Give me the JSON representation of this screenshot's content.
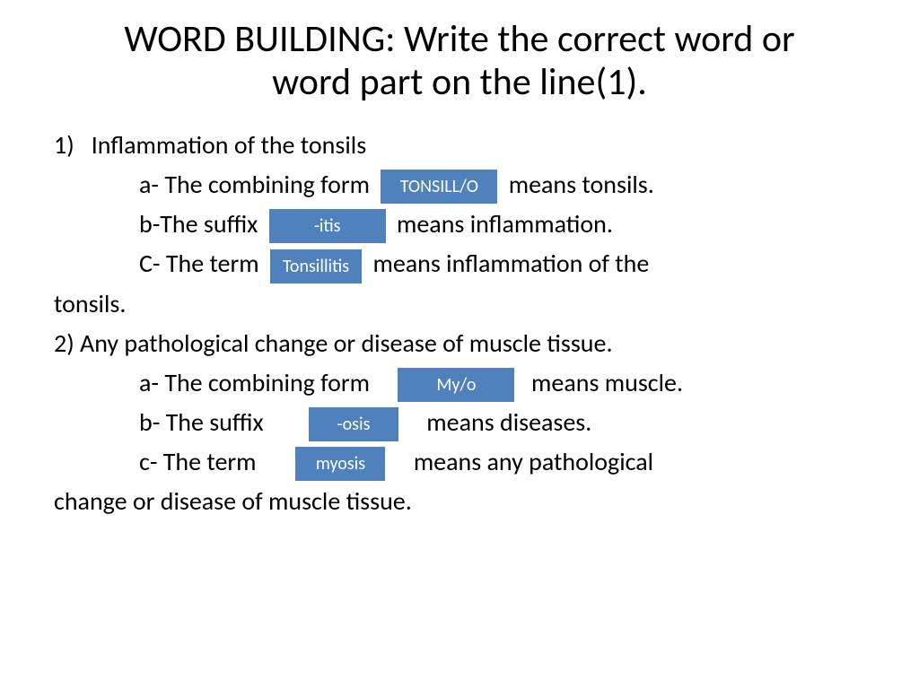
{
  "title": "WORD BUILDING: Write the correct word or word part on the line(1).",
  "q1": {
    "number": "1)",
    "prompt": "Inflammation of the tonsils",
    "a_pre": "a- The combining form",
    "a_ans": "TONSILL/O",
    "a_post": "means tonsils.",
    "b_pre": "b-The suffix",
    "b_ans": "-itis",
    "b_post": "means inflammation.",
    "c_pre": "C- The term",
    "c_ans": "Tonsillitis",
    "c_post": "means inflammation of the",
    "c_wrap": "tonsils."
  },
  "q2": {
    "number": "2)",
    "prompt": "Any pathological change or disease of muscle tissue.",
    "a_pre": "a- The combining form",
    "a_ans": "My/o",
    "a_post": "means muscle.",
    "b_pre": "b- The suffix",
    "b_ans": "-osis",
    "b_post": "means diseases.",
    "c_pre": "c-  The term",
    "c_ans": "myosis",
    "c_post": "means  any pathological",
    "c_wrap": "change or disease of muscle tissue."
  },
  "colors": {
    "box_bg": "#4f81bd",
    "box_text": "#ffffff",
    "text": "#000000",
    "background": "#ffffff"
  }
}
